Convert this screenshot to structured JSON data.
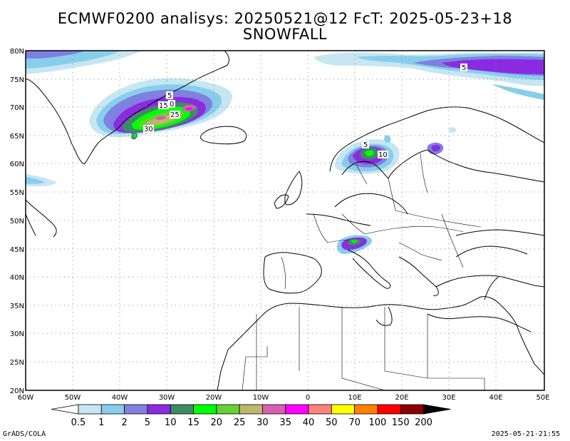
{
  "title": "ECMWF0200 analisys: 20250521@12 FcT: 2025-05-23+18",
  "subtitle": "SNOWFALL",
  "lat_labels": [
    "80N",
    "75N",
    "70N",
    "65N",
    "60N",
    "55N",
    "50N",
    "45N",
    "40N",
    "35N",
    "30N",
    "25N",
    "20N"
  ],
  "lon_labels": [
    "60W",
    "50W",
    "40W",
    "30W",
    "20W",
    "10W",
    "0",
    "10E",
    "20E",
    "30E",
    "40E",
    "50E"
  ],
  "extent": {
    "lon_min": -60,
    "lon_max": 50,
    "lat_min": 20,
    "lat_max": 80
  },
  "contour_labels": [
    "5",
    "0",
    "15",
    "25",
    "30",
    "5",
    "10",
    "5"
  ],
  "colorbar": {
    "labels": [
      "0.5",
      "1",
      "2",
      "5",
      "10",
      "15",
      "20",
      "25",
      "30",
      "35",
      "40",
      "50",
      "70",
      "100",
      "150",
      "200"
    ],
    "colors": [
      "#ffffff",
      "#c6e6f2",
      "#87ceeb",
      "#8080e0",
      "#8a2be2",
      "#3c8c64",
      "#00ff00",
      "#66d035",
      "#bdb76b",
      "#d65fb0",
      "#ff00ff",
      "#ff8080",
      "#ffff00",
      "#ff8000",
      "#ff0000",
      "#8b0000",
      "#000000"
    ]
  },
  "footer_left": "GrADS/COLA",
  "footer_right": "2025-05-21-21:55"
}
